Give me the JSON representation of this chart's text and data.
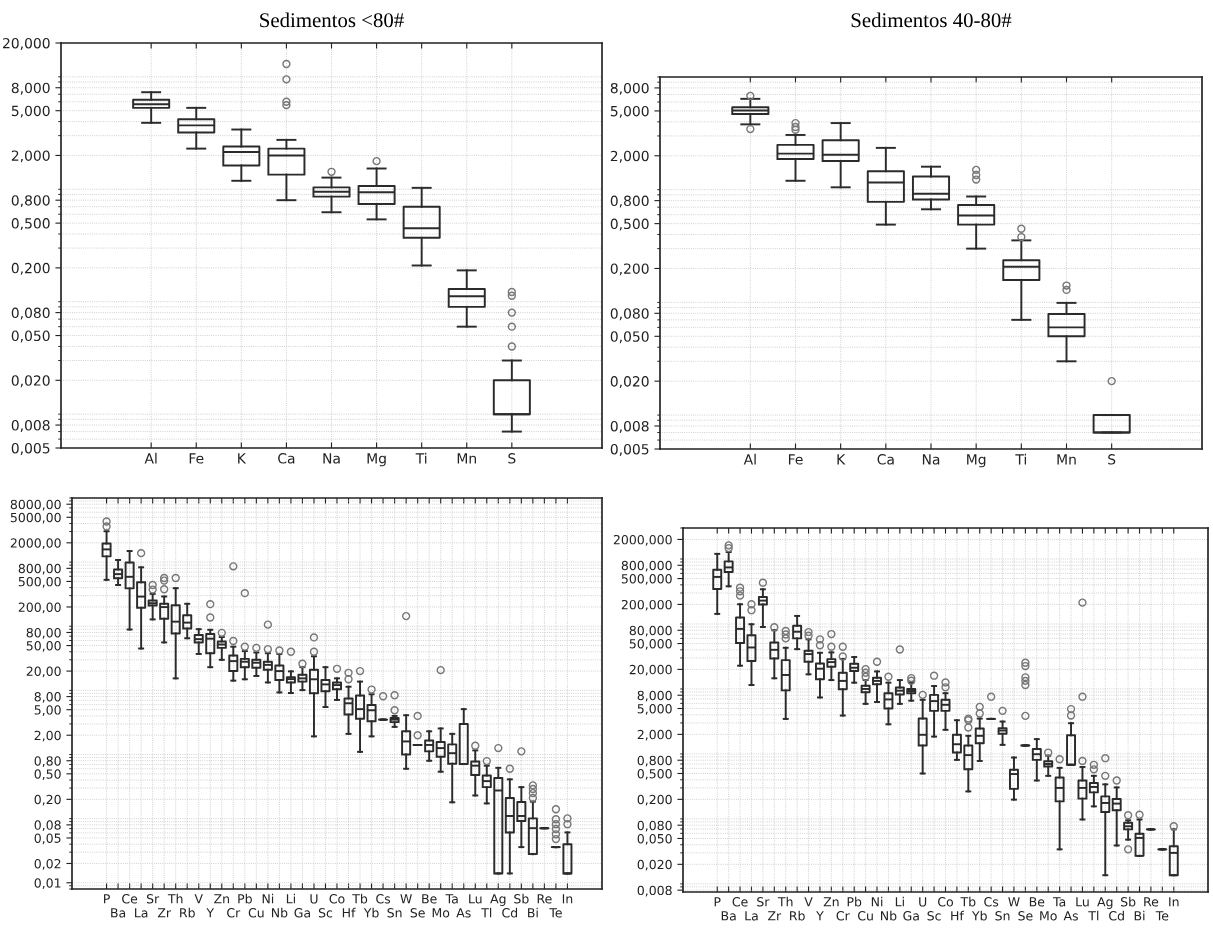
{
  "chart_data": [
    {
      "type": "box",
      "title": "Sedimentos <80#",
      "log": true,
      "grid": true,
      "marker": "circle",
      "categories": [
        "Al",
        "Fe",
        "K",
        "Ca",
        "Na",
        "Mg",
        "Ti",
        "Mn",
        "S"
      ],
      "ylim": [
        0.005,
        20
      ],
      "yticks": [
        {
          "value": 0.005,
          "label": "0,005"
        },
        {
          "value": 0.008,
          "label": "0,008"
        },
        {
          "value": 0.02,
          "label": "0,020"
        },
        {
          "value": 0.05,
          "label": "0,050"
        },
        {
          "value": 0.08,
          "label": "0,080"
        },
        {
          "value": 0.2,
          "label": "0,200"
        },
        {
          "value": 0.5,
          "label": "0,500"
        },
        {
          "value": 0.8,
          "label": "0,800"
        },
        {
          "value": 2,
          "label": "2,000"
        },
        {
          "value": 5,
          "label": "5,000"
        },
        {
          "value": 8,
          "label": "8,000"
        },
        {
          "value": 20,
          "label": "20,000"
        }
      ],
      "boxes": [
        {
          "low": 3.9,
          "q1": 5.3,
          "median": 5.7,
          "q3": 6.25,
          "high": 7.3
        },
        {
          "low": 2.3,
          "q1": 3.2,
          "median": 3.7,
          "q3": 4.2,
          "high": 5.3
        },
        {
          "low": 1.19,
          "q1": 1.63,
          "median": 2.15,
          "q3": 2.4,
          "high": 3.4
        },
        {
          "low": 0.8,
          "q1": 1.35,
          "median": 2.0,
          "q3": 2.3,
          "high": 2.75,
          "outliers": [
            13,
            9.5,
            6.0,
            5.6
          ]
        },
        {
          "low": 0.625,
          "q1": 0.86,
          "median": 0.95,
          "q3": 1.04,
          "high": 1.27,
          "outliers": [
            1.43
          ]
        },
        {
          "low": 0.54,
          "q1": 0.74,
          "median": 0.94,
          "q3": 1.07,
          "high": 1.53,
          "outliers": [
            1.78
          ]
        },
        {
          "low": 0.21,
          "q1": 0.37,
          "median": 0.45,
          "q3": 0.7,
          "high": 1.03
        },
        {
          "low": 0.06,
          "q1": 0.09,
          "median": 0.112,
          "q3": 0.13,
          "high": 0.19
        },
        {
          "low": 0.007,
          "q1": 0.01,
          "median": 0.01,
          "q3": 0.02,
          "high": 0.03,
          "outliers": [
            0.122,
            0.113,
            0.08,
            0.06,
            0.04
          ]
        }
      ]
    },
    {
      "type": "box",
      "title": "Sedimentos 40-80#",
      "log": true,
      "grid": true,
      "marker": "circle",
      "categories": [
        "Al",
        "Fe",
        "K",
        "Ca",
        "Na",
        "Mg",
        "Ti",
        "Mn",
        "S"
      ],
      "ylim": [
        0.005,
        10
      ],
      "yticks": [
        {
          "value": 0.005,
          "label": "0,005"
        },
        {
          "value": 0.008,
          "label": "0,008"
        },
        {
          "value": 0.02,
          "label": "0,020"
        },
        {
          "value": 0.05,
          "label": "0,050"
        },
        {
          "value": 0.08,
          "label": "0,080"
        },
        {
          "value": 0.2,
          "label": "0,200"
        },
        {
          "value": 0.5,
          "label": "0,500"
        },
        {
          "value": 0.8,
          "label": "0,800"
        },
        {
          "value": 2,
          "label": "2,000"
        },
        {
          "value": 5,
          "label": "5,000"
        },
        {
          "value": 8,
          "label": "8,000"
        }
      ],
      "boxes": [
        {
          "low": 3.8,
          "q1": 4.7,
          "median": 5.05,
          "q3": 5.4,
          "high": 6.4,
          "outliers": [
            6.8,
            3.45
          ]
        },
        {
          "low": 1.2,
          "q1": 1.87,
          "median": 2.09,
          "q3": 2.5,
          "high": 3.06,
          "outliers": [
            3.9,
            3.6,
            3.4
          ]
        },
        {
          "low": 1.05,
          "q1": 1.8,
          "median": 2.04,
          "q3": 2.75,
          "high": 3.9
        },
        {
          "low": 0.49,
          "q1": 0.78,
          "median": 1.16,
          "q3": 1.46,
          "high": 2.35
        },
        {
          "low": 0.67,
          "q1": 0.82,
          "median": 0.92,
          "q3": 1.31,
          "high": 1.6
        },
        {
          "low": 0.3,
          "q1": 0.49,
          "median": 0.59,
          "q3": 0.73,
          "high": 0.87,
          "outliers": [
            1.5,
            1.35,
            1.23
          ]
        },
        {
          "low": 0.07,
          "q1": 0.158,
          "median": 0.207,
          "q3": 0.237,
          "high": 0.355,
          "outliers": [
            0.45,
            0.38
          ]
        },
        {
          "low": 0.03,
          "q1": 0.05,
          "median": 0.06,
          "q3": 0.079,
          "high": 0.099,
          "outliers": [
            0.141,
            0.129
          ]
        },
        {
          "low": 0.007,
          "q1": 0.007,
          "median": 0.007,
          "q3": 0.01,
          "high": 0.01,
          "outliers": [
            0.02
          ]
        }
      ]
    },
    {
      "type": "box",
      "log": true,
      "grid": true,
      "marker": "circle",
      "categories": [
        "P",
        "Ba",
        "Ce",
        "La",
        "Sr",
        "Zr",
        "Th",
        "Rb",
        "V",
        "Y",
        "Zn",
        "Cr",
        "Pb",
        "Cu",
        "Ni",
        "Nb",
        "Li",
        "Ga",
        "U",
        "Sc",
        "Co",
        "Hf",
        "Tb",
        "Yb",
        "Cs",
        "Sn",
        "W",
        "Se",
        "Be",
        "Mo",
        "Ta",
        "As",
        "Lu",
        "Tl",
        "Ag",
        "Cd",
        "Sb",
        "Bi",
        "Re",
        "Te",
        "In"
      ],
      "ylim": [
        0.008,
        10000
      ],
      "yticks": [
        {
          "value": 0.01,
          "label": "0,01"
        },
        {
          "value": 0.02,
          "label": "0,02"
        },
        {
          "value": 0.05,
          "label": "0,05"
        },
        {
          "value": 0.08,
          "label": "0,08"
        },
        {
          "value": 0.2,
          "label": "0,20"
        },
        {
          "value": 0.5,
          "label": "0,50"
        },
        {
          "value": 0.8,
          "label": "0,80"
        },
        {
          "value": 2,
          "label": "2,00"
        },
        {
          "value": 5,
          "label": "5,00"
        },
        {
          "value": 8,
          "label": "8,00"
        },
        {
          "value": 20,
          "label": "20,00"
        },
        {
          "value": 50,
          "label": "50,00"
        },
        {
          "value": 80,
          "label": "80,00"
        },
        {
          "value": 200,
          "label": "200,00"
        },
        {
          "value": 500,
          "label": "500,00"
        },
        {
          "value": 800,
          "label": "800,00"
        },
        {
          "value": 2000,
          "label": "2000,00"
        },
        {
          "value": 5000,
          "label": "5000,00"
        },
        {
          "value": 8000,
          "label": "8000,00"
        }
      ],
      "boxes": [
        {
          "low": 530,
          "q1": 1230,
          "median": 1580,
          "q3": 1950,
          "high": 3030,
          "outliers": [
            3600,
            4300
          ]
        },
        {
          "low": 440,
          "q1": 560,
          "median": 650,
          "q3": 770,
          "high": 1080
        },
        {
          "low": 89,
          "q1": 390,
          "median": 590,
          "q3": 990,
          "high": 1490
        },
        {
          "low": 45,
          "q1": 194,
          "median": 290,
          "q3": 485,
          "high": 830,
          "outliers": [
            1380
          ]
        },
        {
          "low": 128,
          "q1": 211,
          "median": 229,
          "q3": 252,
          "high": 320,
          "outliers": [
            373,
            440
          ]
        },
        {
          "low": 56,
          "q1": 131,
          "median": 199,
          "q3": 224,
          "high": 291,
          "outliers": [
            378,
            566,
            515
          ]
        },
        {
          "low": 15.4,
          "q1": 77,
          "median": 118,
          "q3": 213,
          "high": 392,
          "outliers": [
            566
          ]
        },
        {
          "low": 65,
          "q1": 92,
          "median": 114,
          "q3": 149,
          "high": 224
        },
        {
          "low": 37,
          "q1": 56,
          "median": 63,
          "q3": 73,
          "high": 90
        },
        {
          "low": 23,
          "q1": 38,
          "median": 64,
          "q3": 76,
          "high": 88,
          "outliers": [
            137,
            221
          ]
        },
        {
          "low": 30,
          "q1": 46,
          "median": 52,
          "q3": 58,
          "high": 68,
          "outliers": [
            79
          ]
        },
        {
          "low": 14.2,
          "q1": 20,
          "median": 28.6,
          "q3": 35,
          "high": 48,
          "outliers": [
            59,
            860
          ]
        },
        {
          "low": 14.9,
          "q1": 23,
          "median": 28,
          "q3": 31,
          "high": 41,
          "outliers": [
            48,
            328
          ]
        },
        {
          "low": 16.8,
          "q1": 22.5,
          "median": 27,
          "q3": 30,
          "high": 39,
          "outliers": [
            46
          ]
        },
        {
          "low": 13.3,
          "q1": 21,
          "median": 25,
          "q3": 28,
          "high": 38,
          "outliers": [
            44,
            106
          ]
        },
        {
          "low": 9.3,
          "q1": 14.5,
          "median": 20,
          "q3": 24.5,
          "high": 37,
          "outliers": [
            42
          ]
        },
        {
          "low": 9.1,
          "q1": 13.3,
          "median": 15,
          "q3": 16,
          "high": 19.8,
          "outliers": [
            40
          ]
        },
        {
          "low": 10.1,
          "q1": 13.7,
          "median": 15.4,
          "q3": 17.5,
          "high": 23,
          "outliers": [
            26
          ]
        },
        {
          "low": 1.92,
          "q1": 9.0,
          "median": 14.9,
          "q3": 21,
          "high": 34,
          "outliers": [
            40,
            67
          ]
        },
        {
          "low": 5.5,
          "q1": 9.7,
          "median": 12.4,
          "q3": 14.5,
          "high": 23
        },
        {
          "low": 7.1,
          "q1": 10.4,
          "median": 12.1,
          "q3": 13.3,
          "high": 15.4,
          "outliers": [
            21.7
          ]
        },
        {
          "low": 2.1,
          "q1": 4.2,
          "median": 6.3,
          "q3": 7.5,
          "high": 11.4,
          "outliers": [
            14.9,
            18.8
          ]
        },
        {
          "low": 1.1,
          "q1": 3.6,
          "median": 5.1,
          "q3": 8.3,
          "high": 13.7,
          "outliers": [
            20
          ]
        },
        {
          "low": 1.92,
          "q1": 3.3,
          "median": 4.9,
          "q3": 5.9,
          "high": 8.7,
          "outliers": [
            10.3
          ]
        },
        {
          "low": 3.5,
          "q1": 3.5,
          "median": 3.5,
          "q3": 3.5,
          "high": 3.5,
          "outliers": [
            8.1
          ]
        },
        {
          "low": 2.7,
          "q1": 3.2,
          "median": 3.5,
          "q3": 3.7,
          "high": 4.0,
          "outliers": [
            4.9,
            8.4
          ]
        },
        {
          "low": 0.6,
          "q1": 1.0,
          "median": 1.6,
          "q3": 2.3,
          "high": 4.1,
          "outliers": [
            144
          ]
        },
        {
          "low": 1.41,
          "q1": 1.41,
          "median": 1.41,
          "q3": 1.41,
          "high": 1.41,
          "outliers": [
            4.0,
            2.0
          ]
        },
        {
          "low": 0.8,
          "q1": 1.12,
          "median": 1.41,
          "q3": 1.66,
          "high": 2.3
        },
        {
          "low": 0.54,
          "q1": 0.92,
          "median": 1.26,
          "q3": 1.57,
          "high": 2.55,
          "outliers": [
            20.7
          ]
        },
        {
          "low": 0.18,
          "q1": 0.72,
          "median": 1.05,
          "q3": 1.44,
          "high": 2.1
        },
        {
          "low": 0.71,
          "q1": 0.71,
          "median": 0.71,
          "q3": 3.0,
          "high": 5.1
        },
        {
          "low": 0.23,
          "q1": 0.48,
          "median": 0.67,
          "q3": 0.78,
          "high": 1.16,
          "outliers": [
            1.37
          ]
        },
        {
          "low": 0.173,
          "q1": 0.31,
          "median": 0.385,
          "q3": 0.47,
          "high": 0.67,
          "outliers": [
            0.79
          ]
        },
        {
          "low": 0.014,
          "q1": 0.014,
          "median": 0.275,
          "q3": 0.43,
          "high": 0.62,
          "outliers": [
            1.26
          ]
        },
        {
          "low": 0.014,
          "q1": 0.061,
          "median": 0.11,
          "q3": 0.21,
          "high": 0.41,
          "outliers": [
            0.6
          ]
        },
        {
          "low": 0.036,
          "q1": 0.092,
          "median": 0.11,
          "q3": 0.182,
          "high": 0.31,
          "outliers": [
            1.12
          ]
        },
        {
          "low": 0.028,
          "q1": 0.028,
          "median": 0.071,
          "q3": 0.101,
          "high": 0.184,
          "outliers": [
            0.29,
            0.25,
            0.21,
            0.33
          ]
        },
        {
          "low": 0.071,
          "q1": 0.071,
          "median": 0.071,
          "q3": 0.071,
          "high": 0.071
        },
        {
          "low": 0.036,
          "q1": 0.036,
          "median": 0.036,
          "q3": 0.036,
          "high": 0.036,
          "outliers": [
            0.14,
            0.098,
            0.082,
            0.069,
            0.057,
            0.048
          ]
        },
        {
          "low": 0.014,
          "q1": 0.014,
          "median": 0.014,
          "q3": 0.04,
          "high": 0.061,
          "outliers": [
            0.101,
            0.082
          ]
        }
      ]
    },
    {
      "type": "box",
      "log": true,
      "grid": true,
      "marker": "circle",
      "categories": [
        "P",
        "Ba",
        "Ce",
        "La",
        "Sr",
        "Zr",
        "Th",
        "Rb",
        "V",
        "Y",
        "Zn",
        "Cr",
        "Pb",
        "Cu",
        "Ni",
        "Nb",
        "Li",
        "Ga",
        "U",
        "Sc",
        "Co",
        "Hf",
        "Tb",
        "Yb",
        "Cs",
        "Sn",
        "W",
        "Se",
        "Be",
        "Mo",
        "Ta",
        "As",
        "Lu",
        "Tl",
        "Ag",
        "Cd",
        "Sb",
        "Bi",
        "Re",
        "Te",
        "In"
      ],
      "ylim": [
        0.0075,
        3000
      ],
      "yticks": [
        {
          "value": 0.008,
          "label": "0,008"
        },
        {
          "value": 0.02,
          "label": "0,020"
        },
        {
          "value": 0.05,
          "label": "0,050"
        },
        {
          "value": 0.08,
          "label": "0,080"
        },
        {
          "value": 0.2,
          "label": "0,200"
        },
        {
          "value": 0.5,
          "label": "0,500"
        },
        {
          "value": 0.8,
          "label": "0,800"
        },
        {
          "value": 2,
          "label": "2,000"
        },
        {
          "value": 5,
          "label": "5,000"
        },
        {
          "value": 8,
          "label": "8,000"
        },
        {
          "value": 20,
          "label": "20,000"
        },
        {
          "value": 50,
          "label": "50,000"
        },
        {
          "value": 80,
          "label": "80,000"
        },
        {
          "value": 200,
          "label": "200,000"
        },
        {
          "value": 500,
          "label": "500,000"
        },
        {
          "value": 800,
          "label": "800,000"
        },
        {
          "value": 2000,
          "label": "2000,000"
        }
      ],
      "boxes": [
        {
          "low": 143,
          "q1": 346,
          "median": 530,
          "q3": 685,
          "high": 1200
        },
        {
          "low": 380,
          "q1": 630,
          "median": 743,
          "q3": 920,
          "high": 1280,
          "outliers": [
            1620,
            1470
          ]
        },
        {
          "low": 22.8,
          "q1": 51,
          "median": 84,
          "q3": 126,
          "high": 201,
          "outliers": [
            362,
            318,
            273
          ]
        },
        {
          "low": 11.5,
          "q1": 26.9,
          "median": 43.5,
          "q3": 67,
          "high": 99,
          "outliers": [
            163,
            201
          ]
        },
        {
          "low": 90,
          "q1": 199,
          "median": 229,
          "q3": 261,
          "high": 342,
          "outliers": [
            432
          ]
        },
        {
          "low": 14.6,
          "q1": 29.5,
          "median": 40,
          "q3": 52,
          "high": 80,
          "outliers": [
            89
          ]
        },
        {
          "low": 3.46,
          "q1": 9.5,
          "median": 16.4,
          "q3": 27.8,
          "high": 43,
          "outliers": [
            78,
            69,
            60
          ]
        },
        {
          "low": 41,
          "q1": 60,
          "median": 76,
          "q3": 94,
          "high": 133
        },
        {
          "low": 16.8,
          "q1": 26.2,
          "median": 34.4,
          "q3": 38.7,
          "high": 58,
          "outliers": [
            75,
            66
          ]
        },
        {
          "low": 7.4,
          "q1": 14.1,
          "median": 20.5,
          "q3": 24.7,
          "high": 36,
          "outliers": [
            58,
            47
          ]
        },
        {
          "low": 13.7,
          "q1": 22,
          "median": 25.9,
          "q3": 28.8,
          "high": 36.5,
          "outliers": [
            44.6,
            70
          ]
        },
        {
          "low": 3.9,
          "q1": 9.9,
          "median": 13.3,
          "q3": 17.8,
          "high": 28.8,
          "outliers": [
            31.6,
            44.6
          ]
        },
        {
          "low": 12.5,
          "q1": 18.9,
          "median": 21.2,
          "q3": 24.4,
          "high": 31
        },
        {
          "low": 5.9,
          "q1": 8.9,
          "median": 10,
          "q3": 11.2,
          "high": 13.7,
          "outliers": [
            20.2,
            17.8,
            15.4
          ]
        },
        {
          "low": 6.3,
          "q1": 11.8,
          "median": 13.3,
          "q3": 14.9,
          "high": 18.6,
          "outliers": [
            26.2
          ]
        },
        {
          "low": 2.86,
          "q1": 5.0,
          "median": 6.9,
          "q3": 8.6,
          "high": 12.5,
          "outliers": [
            15.4
          ]
        },
        {
          "low": 5.9,
          "q1": 8.2,
          "median": 9.4,
          "q3": 10.5,
          "high": 13.7,
          "outliers": [
            40.5
          ]
        },
        {
          "low": 6.6,
          "q1": 8.6,
          "median": 9.3,
          "q3": 10,
          "high": 12.6,
          "outliers": [
            14.7,
            13.4
          ]
        },
        {
          "low": 0.5,
          "q1": 1.35,
          "median": 1.97,
          "q3": 3.5,
          "high": 6.8,
          "outliers": [
            8.1
          ]
        },
        {
          "low": 1.85,
          "q1": 4.6,
          "median": 6.5,
          "q3": 8.1,
          "high": 11.1,
          "outliers": [
            16
          ]
        },
        {
          "low": 2.35,
          "q1": 4.6,
          "median": 5.7,
          "q3": 6.8,
          "high": 8.6,
          "outliers": [
            12.6,
            10.6
          ]
        },
        {
          "low": 0.81,
          "q1": 1.05,
          "median": 1.41,
          "q3": 1.97,
          "high": 3.3
        },
        {
          "low": 0.265,
          "q1": 0.58,
          "median": 0.96,
          "q3": 1.35,
          "high": 1.9,
          "outliers": [
            3.5,
            2.55,
            3.3
          ]
        },
        {
          "low": 0.78,
          "q1": 1.46,
          "median": 1.9,
          "q3": 2.46,
          "high": 3.5,
          "outliers": [
            4.2,
            5.3
          ]
        },
        {
          "low": 3.46,
          "q1": 3.46,
          "median": 3.46,
          "q3": 3.46,
          "high": 3.46,
          "outliers": [
            7.6
          ]
        },
        {
          "low": 1.38,
          "q1": 2.04,
          "median": 2.29,
          "q3": 2.49,
          "high": 3.15,
          "outliers": [
            4.6
          ]
        },
        {
          "low": 0.198,
          "q1": 0.29,
          "median": 0.49,
          "q3": 0.57,
          "high": 0.88
        },
        {
          "low": 1.35,
          "q1": 1.35,
          "median": 1.35,
          "q3": 1.35,
          "high": 1.35,
          "outliers": [
            25.3,
            22.5,
            15.1,
            13.3,
            11.5,
            3.85
          ]
        },
        {
          "low": 0.39,
          "q1": 0.81,
          "median": 0.99,
          "q3": 1.19,
          "high": 1.69
        },
        {
          "low": 0.46,
          "q1": 0.64,
          "median": 0.7,
          "q3": 0.77,
          "high": 0.94,
          "outliers": [
            1.05
          ]
        },
        {
          "low": 0.034,
          "q1": 0.186,
          "median": 0.3,
          "q3": 0.435,
          "high": 0.61,
          "outliers": [
            0.83
          ]
        },
        {
          "low": 0.68,
          "q1": 0.68,
          "median": 0.68,
          "q3": 1.94,
          "high": 2.97,
          "outliers": [
            4.9,
            3.9
          ]
        },
        {
          "low": 0.098,
          "q1": 0.205,
          "median": 0.3,
          "q3": 0.39,
          "high": 0.63,
          "outliers": [
            0.78,
            213,
            7.6
          ]
        },
        {
          "low": 0.156,
          "q1": 0.256,
          "median": 0.31,
          "q3": 0.356,
          "high": 0.46,
          "outliers": [
            0.68,
            0.58
          ]
        },
        {
          "low": 0.0136,
          "q1": 0.128,
          "median": 0.176,
          "q3": 0.222,
          "high": 0.34,
          "outliers": [
            0.46,
            0.86
          ]
        },
        {
          "low": 0.039,
          "q1": 0.136,
          "median": 0.172,
          "q3": 0.202,
          "high": 0.305,
          "outliers": [
            0.39
          ]
        },
        {
          "low": 0.048,
          "q1": 0.069,
          "median": 0.077,
          "q3": 0.087,
          "high": 0.095,
          "outliers": [
            0.114,
            0.034
          ]
        },
        {
          "low": 0.027,
          "q1": 0.027,
          "median": 0.051,
          "q3": 0.059,
          "high": 0.098,
          "outliers": [
            0.116
          ]
        },
        {
          "low": 0.069,
          "q1": 0.069,
          "median": 0.069,
          "q3": 0.069,
          "high": 0.069
        },
        {
          "low": 0.034,
          "q1": 0.034,
          "median": 0.034,
          "q3": 0.034,
          "high": 0.034
        },
        {
          "low": 0.0136,
          "q1": 0.0136,
          "median": 0.03,
          "q3": 0.038,
          "high": 0.069,
          "outliers": [
            0.077
          ]
        }
      ]
    }
  ]
}
